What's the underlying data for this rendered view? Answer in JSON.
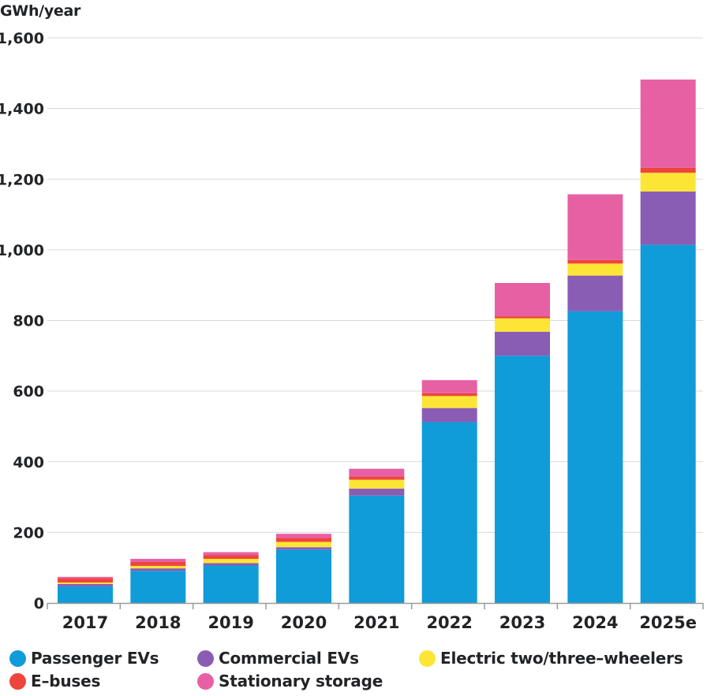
{
  "chart_data": {
    "type": "bar",
    "stacked": true,
    "title": "",
    "ylabel": "GWh/year",
    "xlabel": "",
    "ylim": [
      0,
      1600
    ],
    "yticks": [
      0,
      200,
      400,
      600,
      800,
      1000,
      1200,
      1400,
      1600
    ],
    "ytick_labels": [
      "0",
      "200",
      "400",
      "600",
      "800",
      "1,000",
      "1,200",
      "1,400",
      "1,600"
    ],
    "grid": true,
    "categories": [
      "2017",
      "2018",
      "2019",
      "2020",
      "2021",
      "2022",
      "2023",
      "2024",
      "2025e"
    ],
    "series": [
      {
        "name": "Passenger EVs",
        "color": "#0f9cd9",
        "values": [
          47,
          91,
          106,
          151,
          304,
          512,
          700,
          826,
          1014
        ]
      },
      {
        "name": "Commercial EVs",
        "color": "#8a5db5",
        "values": [
          7,
          7,
          7,
          7,
          20,
          40,
          68,
          101,
          151
        ]
      },
      {
        "name": "Electric two/three-wheelers",
        "color": "#fde535",
        "values": [
          4,
          7,
          12,
          15,
          25,
          34,
          38,
          34,
          53
        ]
      },
      {
        "name": "E-buses",
        "color": "#ee453c",
        "values": [
          12,
          11,
          10,
          11,
          9,
          8,
          6,
          10,
          14
        ]
      },
      {
        "name": "Stationary storage",
        "color": "#e860a4",
        "values": [
          4,
          9,
          9,
          12,
          22,
          37,
          94,
          186,
          250
        ]
      }
    ],
    "legend_position": "bottom",
    "legend": [
      {
        "label": "Passenger EVs",
        "color": "#0f9cd9"
      },
      {
        "label": "Commercial EVs",
        "color": "#8a5db5"
      },
      {
        "label": "Electric two/three–wheelers",
        "color": "#fde535"
      },
      {
        "label": "E–buses",
        "color": "#ee453c"
      },
      {
        "label": "Stationary storage",
        "color": "#e860a4"
      }
    ]
  }
}
